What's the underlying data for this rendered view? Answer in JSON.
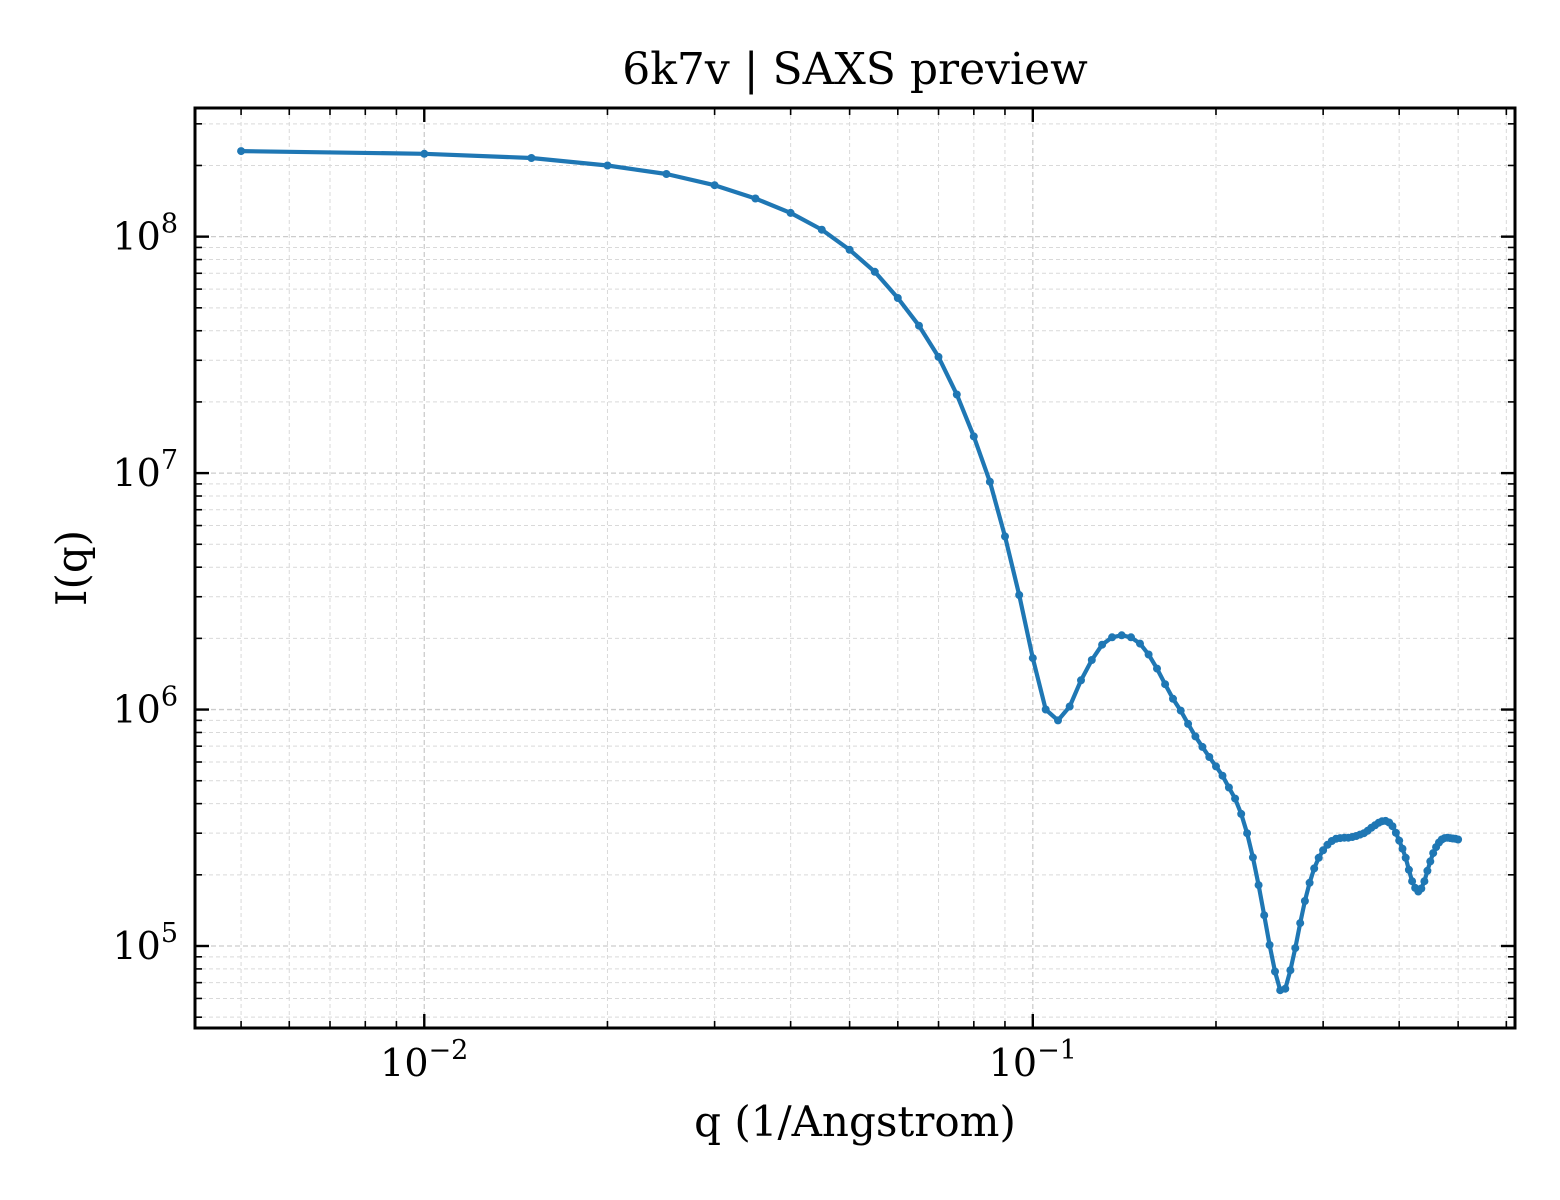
{
  "chart_data": {
    "type": "line",
    "title": "6k7v | SAXS preview",
    "xlabel": "q (1/Angstrom)",
    "ylabel": "I(q)",
    "xscale": "log",
    "yscale": "log",
    "xlim": [
      0.0042,
      0.62
    ],
    "ylim": [
      45000,
      350000000
    ],
    "x_ticks": [
      {
        "value": 0.01,
        "base": "10",
        "exp": "−2"
      },
      {
        "value": 0.1,
        "base": "10",
        "exp": "−1"
      }
    ],
    "y_ticks": [
      {
        "value": 100000,
        "base": "10",
        "exp": "5"
      },
      {
        "value": 1000000,
        "base": "10",
        "exp": "6"
      },
      {
        "value": 10000000,
        "base": "10",
        "exp": "7"
      },
      {
        "value": 100000000,
        "base": "10",
        "exp": "8"
      }
    ],
    "grid": true,
    "marker": "dot",
    "color": "#1f77b4",
    "series": [
      {
        "x": [
          0.005,
          0.01,
          0.015,
          0.02,
          0.025,
          0.03,
          0.035,
          0.04,
          0.045,
          0.05,
          0.055,
          0.06,
          0.065,
          0.07,
          0.075,
          0.08,
          0.085,
          0.09,
          0.095,
          0.1,
          0.105,
          0.11,
          0.115,
          0.12,
          0.125,
          0.13,
          0.135,
          0.14,
          0.145,
          0.15,
          0.155,
          0.16,
          0.165,
          0.17,
          0.175,
          0.18,
          0.185,
          0.19,
          0.195,
          0.2,
          0.205,
          0.21,
          0.215,
          0.22,
          0.225,
          0.23,
          0.235,
          0.24,
          0.245,
          0.25,
          0.255,
          0.26,
          0.265,
          0.27,
          0.275,
          0.28,
          0.285,
          0.29,
          0.295,
          0.3,
          0.305,
          0.31,
          0.315,
          0.32,
          0.325,
          0.33,
          0.335,
          0.34,
          0.345,
          0.35,
          0.355,
          0.36,
          0.365,
          0.37,
          0.375,
          0.38,
          0.385,
          0.39,
          0.395,
          0.4,
          0.405,
          0.41,
          0.415,
          0.42,
          0.425,
          0.43,
          0.435,
          0.44,
          0.445,
          0.45,
          0.455,
          0.46,
          0.465,
          0.47,
          0.475,
          0.48,
          0.485,
          0.49,
          0.495,
          0.5
        ],
        "y": [
          230000000,
          224000000,
          215000000,
          200000000,
          184000000,
          165000000,
          145000000,
          126000000,
          107000000,
          88000000,
          71000000,
          55000000,
          42000000,
          31000000,
          21500000,
          14300000,
          9200000,
          5400000,
          3050000,
          1650000,
          1000000,
          900000,
          1030000,
          1330000,
          1620000,
          1880000,
          2020000,
          2060000,
          2020000,
          1900000,
          1710000,
          1490000,
          1280000,
          1110000,
          990000,
          870000,
          770000,
          695000,
          630000,
          575000,
          525000,
          468000,
          420000,
          362000,
          300000,
          237000,
          181000,
          135000,
          101000,
          78000,
          65000,
          66000,
          79000,
          98000,
          125000,
          155000,
          185000,
          213000,
          236000,
          254000,
          268000,
          278000,
          284000,
          286000,
          287000,
          287000,
          289000,
          292000,
          296000,
          300000,
          307000,
          316000,
          324000,
          332000,
          337000,
          338000,
          333000,
          321000,
          301000,
          279000,
          258000,
          236000,
          210000,
          188000,
          176000,
          170000,
          175000,
          188000,
          208000,
          228000,
          247000,
          262000,
          274000,
          282000,
          286000,
          287000,
          286000,
          285000,
          284000,
          282000
        ]
      }
    ]
  }
}
